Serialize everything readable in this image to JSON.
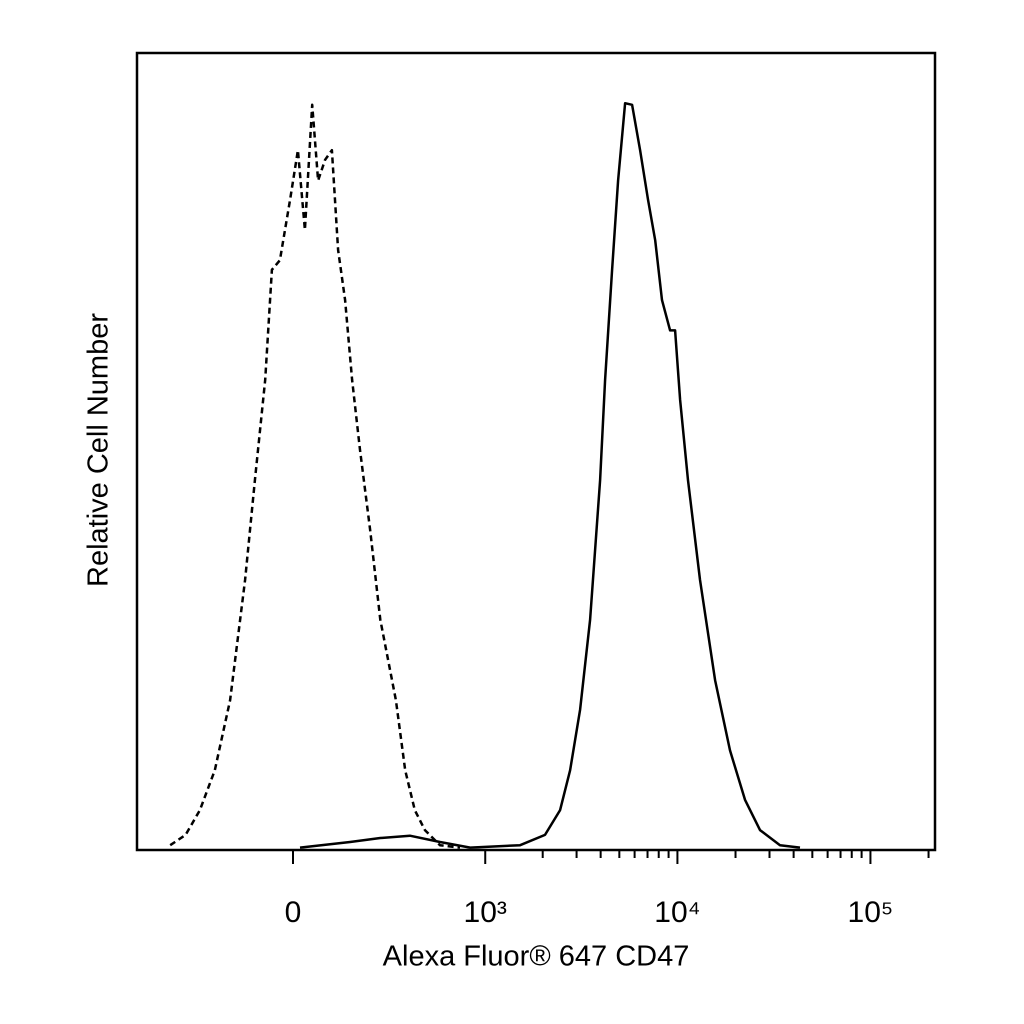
{
  "chart_data": {
    "type": "line",
    "xlabel": "Alexa Fluor® 647 CD47",
    "ylabel": "Relative Cell Number",
    "xscale": "biexponential",
    "xlim": [
      -640,
      216000
    ],
    "ylim": [
      0,
      100
    ],
    "xticks": [
      0,
      {
        "value": 1000,
        "label": "10³"
      },
      {
        "value": 10000,
        "label": "10⁴"
      },
      {
        "value": 100000,
        "label": "10⁵"
      }
    ],
    "minor_xticks": [
      2000,
      3000,
      4000,
      5000,
      6000,
      7000,
      8000,
      9000,
      20000,
      30000,
      40000,
      50000,
      60000,
      70000,
      80000,
      90000,
      200000
    ],
    "series": [
      {
        "color": "#000000",
        "dashed": true,
        "x": [
          -418,
          -339,
          -276,
          -219,
          -168,
          -123,
          -96,
          -69,
          -52,
          -32,
          -7,
          12,
          29,
          47,
          62,
          80,
          98,
          115,
          135,
          156,
          181,
          215,
          253,
          318,
          362,
          412,
          471,
          571,
          734
        ],
        "values": [
          0.6,
          1.9,
          5,
          10,
          18.8,
          33.9,
          46.4,
          59,
          72.8,
          74,
          81.6,
          87.8,
          77.8,
          93.5,
          84,
          86.6,
          87.8,
          75.3,
          69,
          59,
          50.2,
          40.2,
          28.9,
          18.8,
          10,
          5,
          2.5,
          0.6,
          0.3
        ]
      },
      {
        "color": "#000000",
        "dashed": false,
        "x": [
          17,
          150,
          253,
          386,
          571,
          832,
          1524,
          2056,
          2462,
          2776,
          3129,
          3525,
          3974,
          4219,
          4588,
          4927,
          5357,
          5822,
          6406,
          7038,
          7670,
          8323,
          9160,
          9731,
          10322,
          11342,
          13097,
          15667,
          18727,
          22399,
          26785,
          34007,
          43166
        ],
        "values": [
          0.3,
          1,
          1.5,
          1.8,
          1,
          0.3,
          0.6,
          1.9,
          5,
          10,
          17.6,
          28.9,
          46.4,
          59,
          72.8,
          84,
          93.7,
          93.5,
          87.8,
          81.6,
          76.5,
          69,
          65.2,
          65.2,
          56.5,
          46.4,
          33.9,
          21.3,
          12.5,
          6.3,
          2.5,
          0.6,
          0.3
        ]
      }
    ]
  }
}
